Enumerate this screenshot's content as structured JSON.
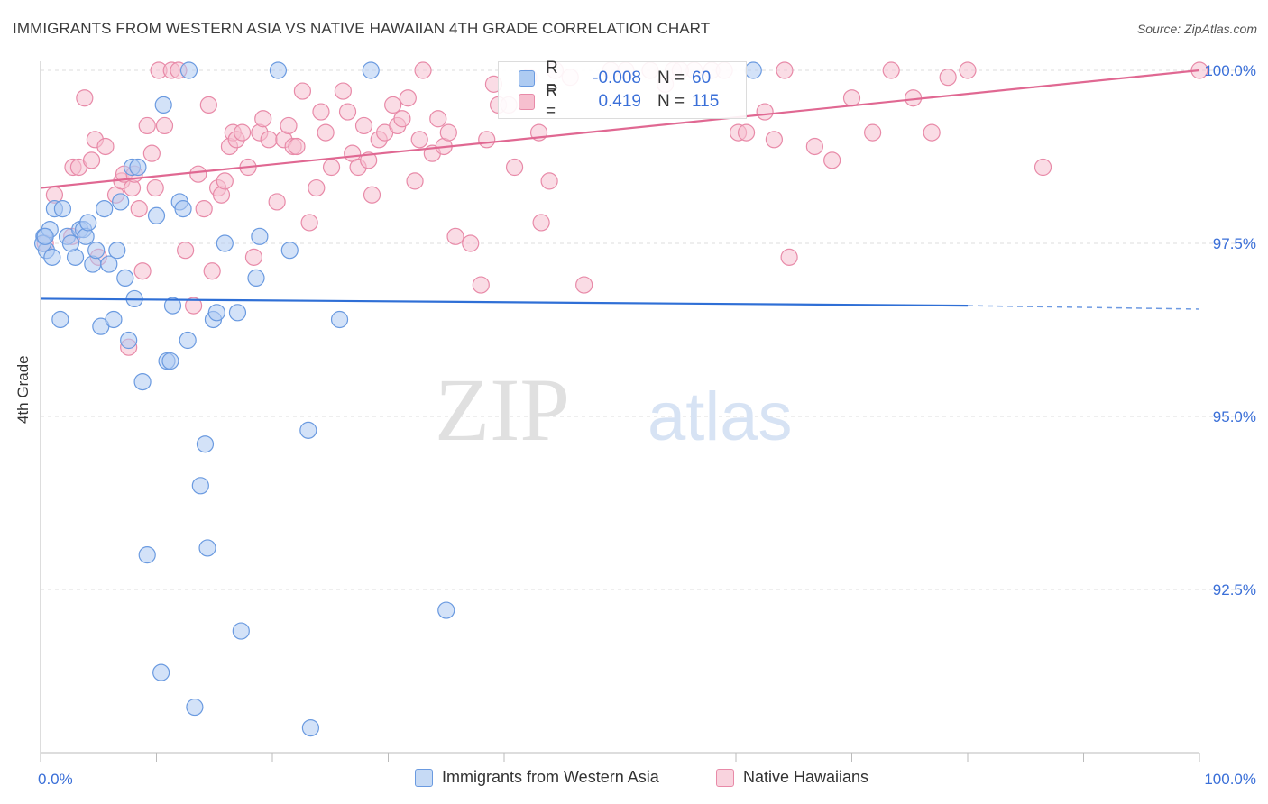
{
  "title": "IMMIGRANTS FROM WESTERN ASIA VS NATIVE HAWAIIAN 4TH GRADE CORRELATION CHART",
  "source": "Source: ZipAtlas.com",
  "watermark": {
    "zip": "ZIP",
    "atlas": "atlas"
  },
  "legend": {
    "r_label": "R =",
    "n_label": "N =",
    "series": [
      {
        "r": "-0.008",
        "n": "60"
      },
      {
        "r": "0.419",
        "n": "115"
      }
    ]
  },
  "chart_data": {
    "type": "scatter",
    "title": "IMMIGRANTS FROM WESTERN ASIA VS NATIVE HAWAIIAN 4TH GRADE CORRELATION CHART",
    "xlabel": "",
    "ylabel": "4th Grade",
    "xlim": [
      0,
      100
    ],
    "ylim": [
      90.2,
      100.4
    ],
    "x_tick_labels": [
      {
        "value": 0,
        "label": "0.0%"
      },
      {
        "value": 100,
        "label": "100.0%"
      }
    ],
    "y_tick_labels": [
      {
        "value": 100.0,
        "label": "100.0%"
      },
      {
        "value": 97.5,
        "label": "97.5%"
      },
      {
        "value": 95.0,
        "label": "95.0%"
      },
      {
        "value": 92.5,
        "label": "92.5%"
      }
    ],
    "series": [
      {
        "name": "Immigrants from Western Asia",
        "color": "#6a9ae0",
        "fill": "#aecbf2",
        "trend": {
          "x": [
            0,
            80
          ],
          "y": [
            96.7,
            96.6
          ],
          "dashed_to": [
            100,
            96.55
          ],
          "color": "#2f6fd6"
        },
        "points": [
          [
            0.3,
            97.6
          ],
          [
            0.5,
            97.4
          ],
          [
            0.8,
            97.7
          ],
          [
            1.2,
            98.0
          ],
          [
            1.7,
            96.4
          ],
          [
            1.9,
            98.0
          ],
          [
            2.3,
            97.6
          ],
          [
            3.0,
            97.3
          ],
          [
            3.4,
            97.7
          ],
          [
            3.7,
            97.7
          ],
          [
            3.9,
            97.6
          ],
          [
            4.5,
            97.2
          ],
          [
            4.8,
            97.4
          ],
          [
            5.2,
            96.3
          ],
          [
            5.5,
            98.0
          ],
          [
            5.9,
            97.2
          ],
          [
            6.3,
            96.4
          ],
          [
            6.6,
            97.4
          ],
          [
            6.9,
            98.1
          ],
          [
            7.3,
            97.0
          ],
          [
            7.6,
            96.1
          ],
          [
            7.9,
            98.6
          ],
          [
            8.1,
            96.7
          ],
          [
            8.4,
            98.6
          ],
          [
            8.8,
            95.5
          ],
          [
            9.2,
            93.0
          ],
          [
            10.0,
            97.9
          ],
          [
            10.4,
            91.3
          ],
          [
            10.6,
            99.5
          ],
          [
            10.9,
            95.8
          ],
          [
            11.2,
            95.8
          ],
          [
            11.4,
            96.6
          ],
          [
            12.0,
            98.1
          ],
          [
            12.3,
            98.0
          ],
          [
            12.7,
            96.1
          ],
          [
            13.3,
            90.8
          ],
          [
            13.8,
            94.0
          ],
          [
            14.2,
            94.6
          ],
          [
            14.4,
            93.1
          ],
          [
            14.9,
            96.4
          ],
          [
            15.9,
            97.5
          ],
          [
            17.0,
            96.5
          ],
          [
            17.3,
            91.9
          ],
          [
            18.6,
            97.0
          ],
          [
            18.9,
            97.6
          ],
          [
            20.5,
            100.0
          ],
          [
            21.5,
            97.4
          ],
          [
            23.1,
            94.8
          ],
          [
            23.3,
            90.5
          ],
          [
            25.8,
            96.4
          ],
          [
            28.5,
            100.0
          ],
          [
            35.0,
            92.2
          ],
          [
            61.5,
            100.0
          ],
          [
            0.2,
            97.5
          ],
          [
            0.4,
            97.6
          ],
          [
            1.0,
            97.3
          ],
          [
            2.6,
            97.5
          ],
          [
            4.1,
            97.8
          ],
          [
            15.2,
            96.5
          ],
          [
            12.8,
            100.0
          ]
        ]
      },
      {
        "name": "Native Hawaiians",
        "color": "#e88aa8",
        "fill": "#f6bfcf",
        "trend": {
          "x": [
            0,
            100
          ],
          "y": [
            98.3,
            100.0
          ],
          "color": "#e06892"
        },
        "points": [
          [
            0.4,
            97.5
          ],
          [
            1.2,
            98.2
          ],
          [
            2.7,
            97.6
          ],
          [
            2.8,
            98.6
          ],
          [
            3.3,
            98.6
          ],
          [
            3.8,
            99.6
          ],
          [
            4.4,
            98.7
          ],
          [
            4.7,
            99.0
          ],
          [
            5.0,
            97.3
          ],
          [
            5.6,
            98.9
          ],
          [
            6.5,
            98.2
          ],
          [
            7.0,
            98.4
          ],
          [
            7.2,
            98.5
          ],
          [
            7.6,
            96.0
          ],
          [
            7.9,
            98.3
          ],
          [
            8.1,
            98.5
          ],
          [
            8.5,
            98.0
          ],
          [
            8.8,
            97.1
          ],
          [
            9.2,
            99.2
          ],
          [
            9.9,
            98.3
          ],
          [
            10.2,
            100.0
          ],
          [
            10.7,
            99.2
          ],
          [
            11.3,
            100.0
          ],
          [
            11.9,
            100.0
          ],
          [
            12.5,
            97.4
          ],
          [
            13.2,
            96.6
          ],
          [
            14.1,
            98.0
          ],
          [
            14.5,
            99.5
          ],
          [
            14.8,
            97.1
          ],
          [
            15.3,
            98.3
          ],
          [
            15.6,
            98.2
          ],
          [
            15.9,
            98.4
          ],
          [
            16.3,
            98.9
          ],
          [
            16.6,
            99.1
          ],
          [
            16.9,
            99.0
          ],
          [
            17.4,
            99.1
          ],
          [
            17.9,
            98.6
          ],
          [
            18.4,
            97.3
          ],
          [
            18.9,
            99.1
          ],
          [
            19.2,
            99.3
          ],
          [
            19.7,
            99.0
          ],
          [
            20.4,
            98.1
          ],
          [
            21.0,
            99.0
          ],
          [
            21.4,
            99.2
          ],
          [
            21.8,
            98.9
          ],
          [
            22.6,
            99.7
          ],
          [
            23.2,
            97.8
          ],
          [
            23.8,
            98.3
          ],
          [
            24.2,
            99.4
          ],
          [
            24.6,
            99.1
          ],
          [
            25.1,
            98.6
          ],
          [
            26.1,
            99.7
          ],
          [
            26.5,
            99.4
          ],
          [
            26.9,
            98.8
          ],
          [
            27.4,
            98.6
          ],
          [
            27.9,
            99.2
          ],
          [
            28.3,
            98.7
          ],
          [
            28.6,
            98.2
          ],
          [
            29.2,
            99.0
          ],
          [
            29.7,
            99.1
          ],
          [
            30.4,
            99.5
          ],
          [
            30.8,
            99.2
          ],
          [
            31.2,
            99.3
          ],
          [
            32.3,
            98.4
          ],
          [
            32.7,
            99.0
          ],
          [
            33.0,
            100.0
          ],
          [
            33.8,
            98.8
          ],
          [
            34.3,
            99.3
          ],
          [
            34.8,
            98.9
          ],
          [
            35.2,
            99.1
          ],
          [
            35.8,
            97.6
          ],
          [
            37.1,
            97.5
          ],
          [
            38.0,
            96.9
          ],
          [
            38.5,
            99.0
          ],
          [
            39.1,
            99.8
          ],
          [
            39.5,
            99.5
          ],
          [
            40.4,
            99.5
          ],
          [
            40.9,
            98.6
          ],
          [
            42.1,
            99.9
          ],
          [
            43.0,
            99.1
          ],
          [
            43.2,
            97.8
          ],
          [
            43.9,
            98.4
          ],
          [
            44.4,
            100.0
          ],
          [
            45.7,
            99.9
          ],
          [
            46.9,
            96.9
          ],
          [
            49.2,
            100.0
          ],
          [
            50.5,
            100.0
          ],
          [
            52.6,
            100.0
          ],
          [
            53.9,
            99.8
          ],
          [
            54.6,
            100.0
          ],
          [
            56.4,
            100.0
          ],
          [
            57.9,
            100.0
          ],
          [
            59.0,
            100.0
          ],
          [
            60.2,
            99.1
          ],
          [
            60.9,
            99.1
          ],
          [
            62.5,
            99.4
          ],
          [
            63.3,
            99.0
          ],
          [
            64.2,
            100.0
          ],
          [
            64.6,
            97.3
          ],
          [
            66.8,
            98.9
          ],
          [
            68.3,
            98.7
          ],
          [
            70.0,
            99.6
          ],
          [
            71.8,
            99.1
          ],
          [
            73.4,
            100.0
          ],
          [
            75.3,
            99.6
          ],
          [
            76.9,
            99.1
          ],
          [
            78.3,
            99.9
          ],
          [
            80.0,
            100.0
          ],
          [
            86.5,
            98.6
          ],
          [
            100.0,
            100.0
          ],
          [
            9.6,
            98.8
          ],
          [
            13.6,
            98.5
          ],
          [
            22.1,
            98.9
          ],
          [
            31.7,
            99.6
          ],
          [
            55.2,
            100.0
          ]
        ]
      }
    ],
    "legend": [
      {
        "label": "Immigrants from Western Asia",
        "swatch": "#aecbf2"
      },
      {
        "label": "Native Hawaiians",
        "swatch": "#f6bfcf"
      }
    ]
  }
}
